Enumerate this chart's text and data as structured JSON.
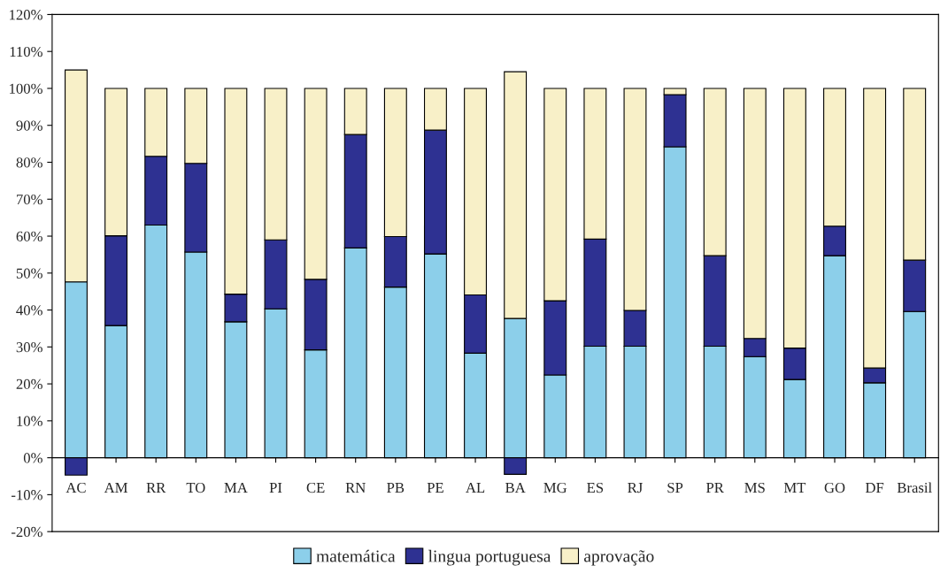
{
  "chart_data": {
    "type": "bar",
    "stacked": true,
    "categories": [
      "AC",
      "AM",
      "RR",
      "TO",
      "MA",
      "PI",
      "CE",
      "RN",
      "PB",
      "PE",
      "AL",
      "BA",
      "MG",
      "ES",
      "RJ",
      "SP",
      "PR",
      "MS",
      "MT",
      "GO",
      "DF",
      "Brasil"
    ],
    "series": [
      {
        "name": "matemática",
        "color": "#8ccfea",
        "values": [
          47.6,
          35.8,
          63.0,
          55.7,
          36.8,
          40.3,
          29.2,
          56.8,
          46.2,
          55.2,
          28.3,
          37.7,
          22.4,
          30.2,
          30.2,
          84.2,
          30.2,
          27.4,
          21.2,
          54.7,
          20.3,
          39.6
        ]
      },
      {
        "name": "lingua portuguesa",
        "color": "#2e3192",
        "values": [
          -4.7,
          24.3,
          18.6,
          24.0,
          7.5,
          18.7,
          19.1,
          30.7,
          13.7,
          33.5,
          15.8,
          -4.5,
          20.1,
          29.0,
          9.7,
          14.1,
          24.5,
          4.9,
          8.5,
          8.0,
          4.0,
          13.9
        ]
      },
      {
        "name": "aprovação",
        "color": "#f8f0c8",
        "values": [
          57.4,
          39.9,
          18.4,
          20.3,
          55.7,
          41.0,
          51.7,
          12.5,
          40.1,
          11.3,
          55.9,
          66.8,
          57.5,
          40.8,
          60.1,
          1.7,
          45.3,
          67.7,
          70.3,
          37.3,
          75.7,
          46.5
        ]
      }
    ],
    "ylim": [
      -20,
      120
    ],
    "yticks": [
      {
        "value": -20,
        "label": "-20%"
      },
      {
        "value": -10,
        "label": "-10%"
      },
      {
        "value": 0,
        "label": "0%"
      },
      {
        "value": 10,
        "label": "10%"
      },
      {
        "value": 20,
        "label": "20%"
      },
      {
        "value": 30,
        "label": "30%"
      },
      {
        "value": 40,
        "label": "40%"
      },
      {
        "value": 50,
        "label": "50%"
      },
      {
        "value": 60,
        "label": "60%"
      },
      {
        "value": 70,
        "label": "70%"
      },
      {
        "value": 80,
        "label": "80%"
      },
      {
        "value": 90,
        "label": "90%"
      },
      {
        "value": 100,
        "label": "100%"
      },
      {
        "value": 110,
        "label": "110%"
      },
      {
        "value": 120,
        "label": "120%"
      }
    ],
    "legend": "bottom"
  }
}
